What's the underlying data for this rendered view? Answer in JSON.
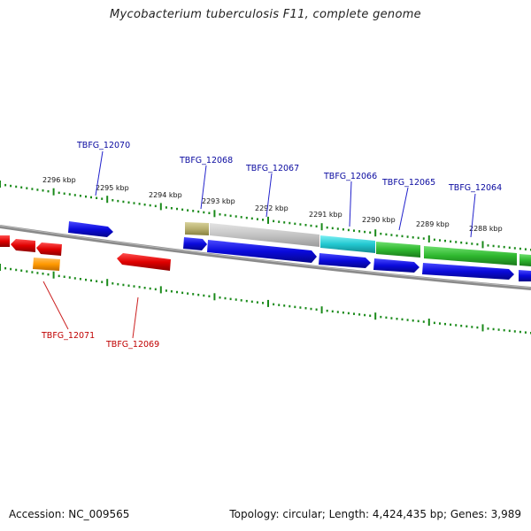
{
  "header": {
    "title": "Mycobacterium tuberculosis F11, complete genome"
  },
  "footer": {
    "accession": "Accession: NC_009565",
    "topology": "Topology: circular; Length: 4,424,435 bp; Genes: 3,989"
  },
  "ruler": {
    "unit": "kbp",
    "ticks": [
      {
        "label": "2296 kbp",
        "kbp": 2296
      },
      {
        "label": "2295 kbp",
        "kbp": 2295
      },
      {
        "label": "2294 kbp",
        "kbp": 2294
      },
      {
        "label": "2293 kbp",
        "kbp": 2293
      },
      {
        "label": "2292 kbp",
        "kbp": 2292
      },
      {
        "label": "2291 kbp",
        "kbp": 2291
      },
      {
        "label": "2290 kbp",
        "kbp": 2290
      },
      {
        "label": "2289 kbp",
        "kbp": 2289
      },
      {
        "label": "2288 kbp",
        "kbp": 2288
      }
    ]
  },
  "gene_labels": {
    "top": [
      {
        "name": "TBFG_12070",
        "color": "#0a0aa0"
      },
      {
        "name": "TBFG_12068",
        "color": "#0a0aa0"
      },
      {
        "name": "TBFG_12067",
        "color": "#0a0aa0"
      },
      {
        "name": "TBFG_12066",
        "color": "#0a0aa0"
      },
      {
        "name": "TBFG_12065",
        "color": "#0a0aa0"
      },
      {
        "name": "TBFG_12064",
        "color": "#0a0aa0"
      }
    ],
    "bottom": [
      {
        "name": "TBFG_12071",
        "color": "#c00000"
      },
      {
        "name": "TBFG_12069",
        "color": "#c00000"
      }
    ]
  },
  "colors": {
    "forward_gene": "#0a0adc",
    "reverse_gene": "#e00000",
    "backbone": "#7a7a7a",
    "tick": "#1a8a1a",
    "feature_olive": "#b8b070",
    "feature_gray": "#c8c8c8",
    "feature_cyan": "#22c8d0",
    "feature_green": "#33c033",
    "feature_orange": "#ff9900"
  }
}
